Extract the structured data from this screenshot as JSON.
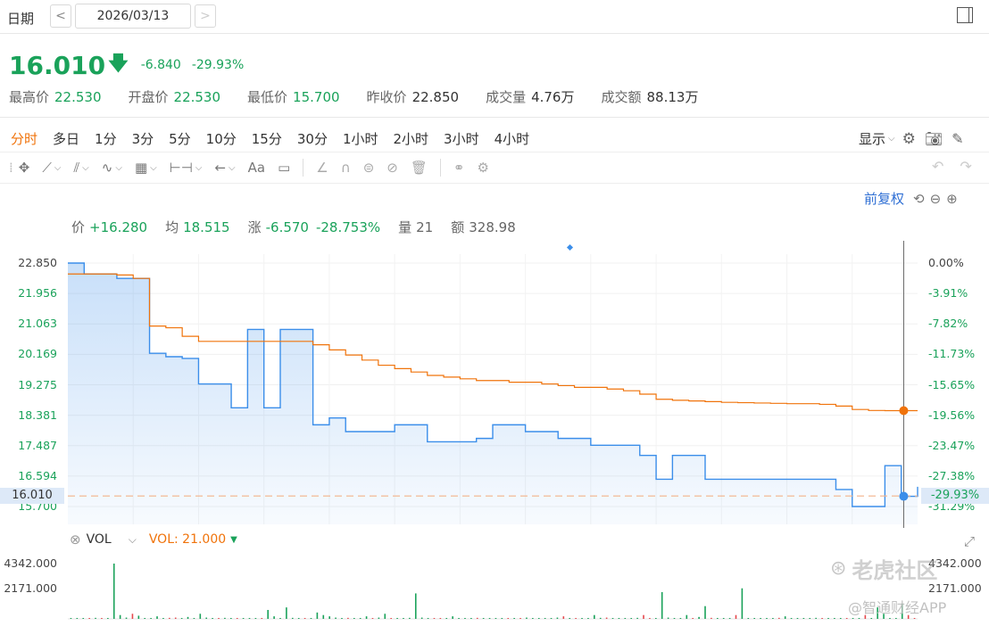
{
  "header": {
    "date_label": "日期",
    "prev": "<",
    "next": ">",
    "date": "2026/03/13"
  },
  "quote": {
    "price": "16.010",
    "change": "-6.840",
    "change_pct": "-29.93%",
    "stats": [
      {
        "label": "最高价",
        "value": "22.530"
      },
      {
        "label": "开盘价",
        "value": "22.530"
      },
      {
        "label": "最低价",
        "value": "15.700"
      },
      {
        "label": "昨收价",
        "value": "22.850"
      },
      {
        "label": "成交量",
        "value": "4.76万"
      },
      {
        "label": "成交额",
        "value": "88.13万"
      }
    ]
  },
  "tabs": [
    "分时",
    "多日",
    "1分",
    "3分",
    "5分",
    "10分",
    "15分",
    "30分",
    "1小时",
    "2小时",
    "3小时",
    "4小时"
  ],
  "active_tab": 0,
  "display_label": "显示",
  "adjust_label": "前复权",
  "tooltip": {
    "price_label": "价",
    "price": "+16.280",
    "avg_label": "均",
    "avg": "18.515",
    "chg_label": "涨",
    "chg": "-6.570",
    "chg_pct": "-28.753%",
    "vol_label": "量",
    "vol": "21",
    "amt_label": "额",
    "amt": "328.98"
  },
  "vol_panel": {
    "name": "VOL",
    "value_label": "VOL: 21.000",
    "ticks": [
      "4342.000",
      "2171.000"
    ],
    "right_ticks": [
      "4342.000",
      "2171.000"
    ]
  },
  "watermark": {
    "community": "老虎社区",
    "app": "@智通财经APP"
  },
  "colors": {
    "up": "#e5484d",
    "down": "#1aa25a",
    "price_line": "#3b8eea",
    "avg_line": "#f0730b",
    "accent": "#f0730b"
  },
  "chart_data": {
    "type": "line",
    "y_ticks": [
      "22.850",
      "21.956",
      "21.063",
      "20.169",
      "19.275",
      "18.381",
      "17.487",
      "16.594",
      "15.700"
    ],
    "y_pct_ticks": [
      "0.00%",
      "-3.91%",
      "-7.82%",
      "-11.73%",
      "-15.65%",
      "-19.56%",
      "-23.47%",
      "-27.38%",
      "-31.29%"
    ],
    "ylim": [
      15.7,
      22.85
    ],
    "current_price_label": "16.010",
    "current_pct_label": "-29.93%",
    "prev_close": 22.85,
    "series": [
      {
        "name": "价",
        "values": [
          22.85,
          22.53,
          22.53,
          22.4,
          22.4,
          20.2,
          20.1,
          20.05,
          19.3,
          19.3,
          18.6,
          20.9,
          18.6,
          20.9,
          20.9,
          18.1,
          18.3,
          17.9,
          17.9,
          17.9,
          18.1,
          18.1,
          17.6,
          17.6,
          17.6,
          17.7,
          18.1,
          18.1,
          17.9,
          17.9,
          17.7,
          17.7,
          17.5,
          17.5,
          17.5,
          17.2,
          16.5,
          17.2,
          17.2,
          16.5,
          16.5,
          16.5,
          16.5,
          16.5,
          16.5,
          16.5,
          16.5,
          16.2,
          15.7,
          15.7,
          16.9,
          16.0,
          16.28
        ]
      },
      {
        "name": "均",
        "values": [
          22.53,
          22.53,
          22.53,
          22.5,
          22.4,
          21.0,
          20.95,
          20.7,
          20.55,
          20.55,
          20.55,
          20.55,
          20.55,
          20.55,
          20.55,
          20.45,
          20.3,
          20.15,
          20.0,
          19.85,
          19.75,
          19.65,
          19.55,
          19.5,
          19.45,
          19.4,
          19.4,
          19.35,
          19.35,
          19.3,
          19.25,
          19.2,
          19.2,
          19.15,
          19.1,
          19.0,
          18.85,
          18.82,
          18.8,
          18.78,
          18.76,
          18.75,
          18.74,
          18.73,
          18.72,
          18.72,
          18.7,
          18.65,
          18.55,
          18.52,
          18.515,
          18.515,
          18.515
        ]
      }
    ],
    "volume": [
      40,
      20,
      60,
      30,
      80,
      20,
      50,
      4342,
      300,
      100,
      400,
      250,
      60,
      30,
      200,
      50,
      80,
      100,
      30,
      150,
      60,
      400,
      100,
      50,
      30,
      80,
      20,
      60,
      40,
      30,
      20,
      60,
      700,
      200,
      30,
      900,
      80,
      40,
      50,
      20,
      500,
      300,
      200,
      100,
      50,
      80,
      40,
      30,
      200,
      50,
      100,
      400,
      60,
      30,
      40,
      80,
      2000,
      100,
      50,
      30,
      60,
      50,
      200,
      40,
      30,
      20,
      80,
      50,
      30,
      60,
      40,
      50,
      30,
      20,
      100,
      60,
      40,
      30,
      20,
      100,
      200,
      50,
      40,
      30,
      50,
      300,
      80,
      100,
      60,
      40,
      30,
      50,
      80,
      300,
      40,
      60,
      2100,
      100,
      40,
      20,
      300,
      50,
      150,
      1000,
      80,
      60,
      40,
      50,
      300,
      2400,
      40,
      30,
      20,
      60,
      40,
      80,
      200,
      60,
      40,
      30,
      20,
      80,
      50,
      60,
      40,
      30,
      20,
      50,
      40,
      300,
      60,
      900,
      400,
      40,
      30,
      1200,
      300,
      60
    ]
  }
}
